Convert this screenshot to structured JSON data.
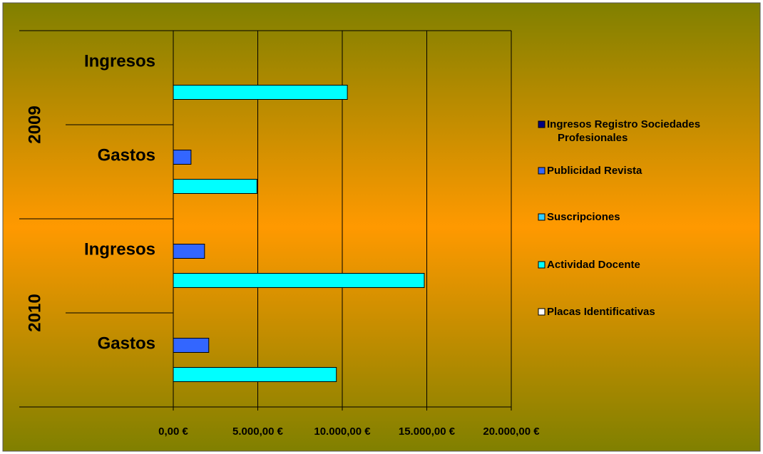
{
  "chart_data": {
    "type": "bar",
    "orientation": "horizontal",
    "groups": [
      {
        "name": "2009",
        "categories": [
          "Ingresos",
          "Gastos"
        ]
      },
      {
        "name": "2010",
        "categories": [
          "Ingresos",
          "Gastos"
        ]
      }
    ],
    "series": [
      {
        "name": "Ingresos Registro Sociedades Profesionales",
        "color": "#000080",
        "values": [
          null,
          null,
          null,
          null
        ]
      },
      {
        "name": "Publicidad Revista",
        "color": "#3366ff",
        "values": [
          null,
          1050,
          1850,
          2100
        ]
      },
      {
        "name": "Suscripciones",
        "color": "#33ccff",
        "values": [
          null,
          null,
          null,
          null
        ]
      },
      {
        "name": "Actividad Docente",
        "color": "#00ffff",
        "values": [
          10300,
          4950,
          14850,
          9650
        ]
      },
      {
        "name": "Placas Identificativas",
        "color": "#ffffff",
        "values": [
          null,
          null,
          null,
          null
        ]
      }
    ],
    "xlim": [
      0,
      20000
    ],
    "xticks": [
      {
        "value": 0,
        "label": "0,00 €"
      },
      {
        "value": 5000,
        "label": "5.000,00 €"
      },
      {
        "value": 10000,
        "label": "10.000,00 €"
      },
      {
        "value": 15000,
        "label": "15.000,00 €"
      },
      {
        "value": 20000,
        "label": "20.000,00 €"
      }
    ],
    "grid": true,
    "legend": "right"
  }
}
